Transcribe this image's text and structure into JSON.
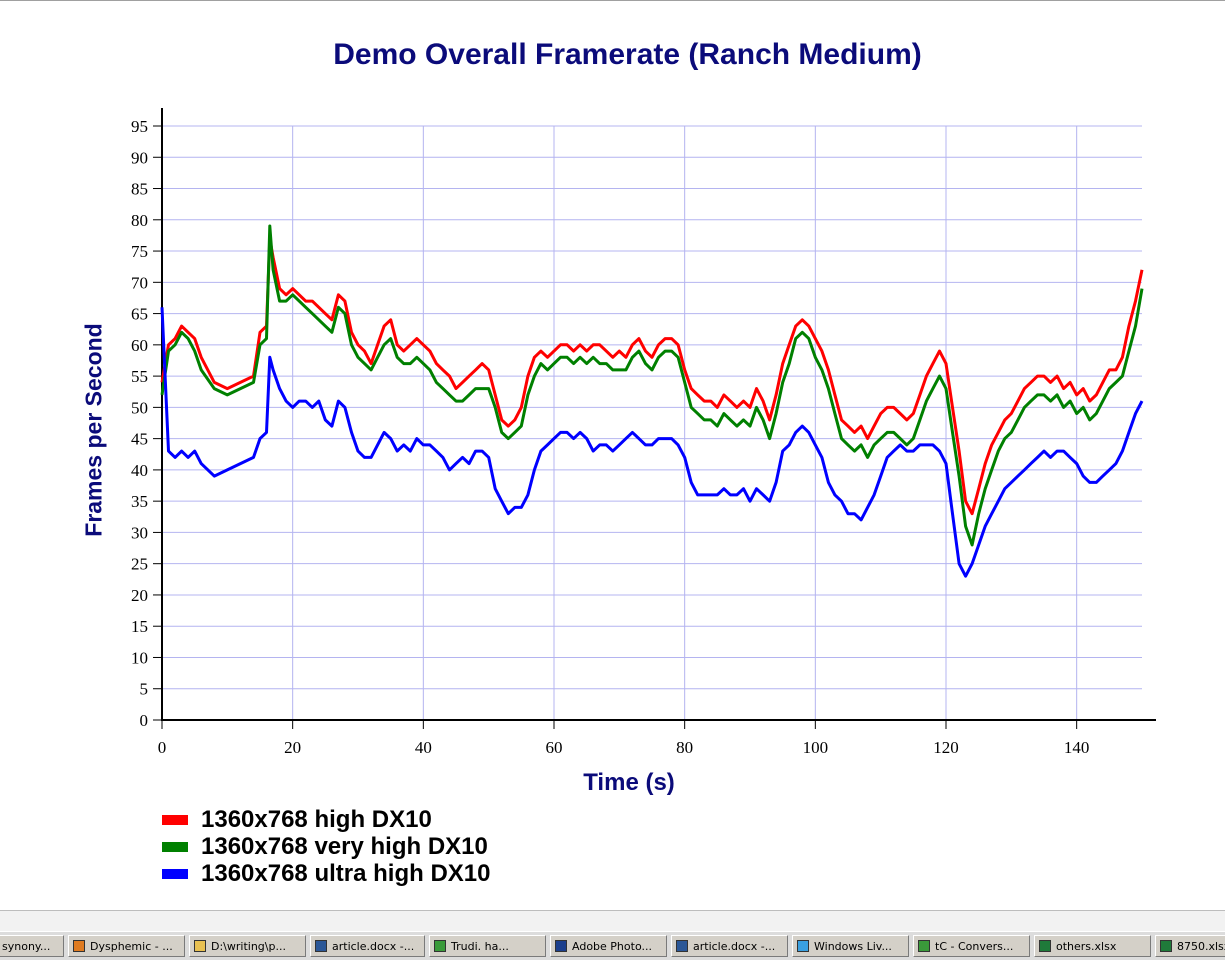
{
  "chart_data": {
    "type": "line",
    "title": "Demo Overall Framerate (Ranch Medium)",
    "xlabel": "Time (s)",
    "ylabel": "Frames per Second",
    "xlim": [
      0,
      150
    ],
    "ylim": [
      0,
      95
    ],
    "xticks": [
      0,
      20,
      40,
      60,
      80,
      100,
      120,
      140
    ],
    "yticks": [
      0,
      5,
      10,
      15,
      20,
      25,
      30,
      35,
      40,
      45,
      50,
      55,
      60,
      65,
      70,
      75,
      80,
      85,
      90,
      95
    ],
    "grid": true,
    "legend_position": "bottom-left",
    "x": [
      0,
      1,
      2,
      3,
      4,
      5,
      6,
      8,
      10,
      12,
      14,
      15,
      16,
      16.5,
      17,
      18,
      19,
      20,
      21,
      22,
      23,
      24,
      25,
      26,
      27,
      28,
      29,
      30,
      31,
      32,
      33,
      34,
      35,
      36,
      37,
      38,
      39,
      40,
      41,
      42,
      43,
      44,
      45,
      46,
      47,
      48,
      49,
      50,
      51,
      52,
      53,
      54,
      55,
      56,
      57,
      58,
      59,
      60,
      61,
      62,
      63,
      64,
      65,
      66,
      67,
      68,
      69,
      70,
      71,
      72,
      73,
      74,
      75,
      76,
      77,
      78,
      79,
      80,
      81,
      82,
      83,
      84,
      85,
      86,
      87,
      88,
      89,
      90,
      91,
      92,
      93,
      94,
      95,
      96,
      97,
      98,
      99,
      100,
      101,
      102,
      103,
      104,
      105,
      106,
      107,
      108,
      109,
      110,
      111,
      112,
      113,
      114,
      115,
      116,
      117,
      118,
      119,
      120,
      121,
      122,
      123,
      124,
      125,
      126,
      127,
      128,
      129,
      130,
      131,
      132,
      133,
      134,
      135,
      136,
      137,
      138,
      139,
      140,
      141,
      142,
      143,
      144,
      145,
      146,
      147,
      148,
      149,
      150
    ],
    "series": [
      {
        "name": "1360x768 high DX10",
        "color": "#ff0000",
        "values": [
          54,
          60,
          61,
          63,
          62,
          61,
          58,
          54,
          53,
          54,
          55,
          62,
          63,
          77,
          74,
          69,
          68,
          69,
          68,
          67,
          67,
          66,
          65,
          64,
          68,
          67,
          62,
          60,
          59,
          57,
          60,
          63,
          64,
          60,
          59,
          60,
          61,
          60,
          59,
          57,
          56,
          55,
          53,
          54,
          55,
          56,
          57,
          56,
          52,
          48,
          47,
          48,
          50,
          55,
          58,
          59,
          58,
          59,
          60,
          60,
          59,
          60,
          59,
          60,
          60,
          59,
          58,
          59,
          58,
          60,
          61,
          59,
          58,
          60,
          61,
          61,
          60,
          56,
          53,
          52,
          51,
          51,
          50,
          52,
          51,
          50,
          51,
          50,
          53,
          51,
          48,
          52,
          57,
          60,
          63,
          64,
          63,
          61,
          59,
          56,
          52,
          48,
          47,
          46,
          47,
          45,
          47,
          49,
          50,
          50,
          49,
          48,
          49,
          52,
          55,
          57,
          59,
          57,
          50,
          43,
          35,
          33,
          37,
          41,
          44,
          46,
          48,
          49,
          51,
          53,
          54,
          55,
          55,
          54,
          55,
          53,
          54,
          52,
          53,
          51,
          52,
          54,
          56,
          56,
          58,
          63,
          67,
          72
        ]
      },
      {
        "name": "1360x768 very high DX10",
        "color": "#008000",
        "values": [
          52,
          59,
          60,
          62,
          61,
          59,
          56,
          53,
          52,
          53,
          54,
          60,
          61,
          79,
          72,
          67,
          67,
          68,
          67,
          66,
          65,
          64,
          63,
          62,
          66,
          65,
          60,
          58,
          57,
          56,
          58,
          60,
          61,
          58,
          57,
          57,
          58,
          57,
          56,
          54,
          53,
          52,
          51,
          51,
          52,
          53,
          53,
          53,
          50,
          46,
          45,
          46,
          47,
          52,
          55,
          57,
          56,
          57,
          58,
          58,
          57,
          58,
          57,
          58,
          57,
          57,
          56,
          56,
          56,
          58,
          59,
          57,
          56,
          58,
          59,
          59,
          58,
          54,
          50,
          49,
          48,
          48,
          47,
          49,
          48,
          47,
          48,
          47,
          50,
          48,
          45,
          49,
          54,
          57,
          61,
          62,
          61,
          58,
          56,
          53,
          49,
          45,
          44,
          43,
          44,
          42,
          44,
          45,
          46,
          46,
          45,
          44,
          45,
          48,
          51,
          53,
          55,
          53,
          46,
          39,
          31,
          28,
          33,
          37,
          40,
          43,
          45,
          46,
          48,
          50,
          51,
          52,
          52,
          51,
          52,
          50,
          51,
          49,
          50,
          48,
          49,
          51,
          53,
          54,
          55,
          59,
          63,
          69
        ]
      },
      {
        "name": "1360x768 ultra high DX10",
        "color": "#0000ff",
        "values": [
          66,
          43,
          42,
          43,
          42,
          43,
          41,
          39,
          40,
          41,
          42,
          45,
          46,
          58,
          56,
          53,
          51,
          50,
          51,
          51,
          50,
          51,
          48,
          47,
          51,
          50,
          46,
          43,
          42,
          42,
          44,
          46,
          45,
          43,
          44,
          43,
          45,
          44,
          44,
          43,
          42,
          40,
          41,
          42,
          41,
          43,
          43,
          42,
          37,
          35,
          33,
          34,
          34,
          36,
          40,
          43,
          44,
          45,
          46,
          46,
          45,
          46,
          45,
          43,
          44,
          44,
          43,
          44,
          45,
          46,
          45,
          44,
          44,
          45,
          45,
          45,
          44,
          42,
          38,
          36,
          36,
          36,
          36,
          37,
          36,
          36,
          37,
          35,
          37,
          36,
          35,
          38,
          43,
          44,
          46,
          47,
          46,
          44,
          42,
          38,
          36,
          35,
          33,
          33,
          32,
          34,
          36,
          39,
          42,
          43,
          44,
          43,
          43,
          44,
          44,
          44,
          43,
          41,
          33,
          25,
          23,
          25,
          28,
          31,
          33,
          35,
          37,
          38,
          39,
          40,
          41,
          42,
          43,
          42,
          43,
          43,
          42,
          41,
          39,
          38,
          38,
          39,
          40,
          41,
          43,
          46,
          49,
          51
        ]
      }
    ]
  },
  "taskbar": {
    "items": [
      {
        "label": "synony...",
        "icon": "browser-icon",
        "icon_color": "#3a7bd5"
      },
      {
        "label": "Dysphemic - ...",
        "icon": "firefox-icon",
        "icon_color": "#e07b20"
      },
      {
        "label": "D:\\writing\\p...",
        "icon": "folder-icon",
        "icon_color": "#e8c050"
      },
      {
        "label": "article.docx -...",
        "icon": "word-icon",
        "icon_color": "#2b5797"
      },
      {
        "label": "Trudi.   ha...",
        "icon": "messenger-icon",
        "icon_color": "#3a9a3a"
      },
      {
        "label": "Adobe Photo...",
        "icon": "photoshop-icon",
        "icon_color": "#1c3f8c"
      },
      {
        "label": "article.docx -...",
        "icon": "word-icon",
        "icon_color": "#2b5797"
      },
      {
        "label": "Windows Liv...",
        "icon": "windows-live-icon",
        "icon_color": "#3aa0e0"
      },
      {
        "label": "tC - Convers...",
        "icon": "messenger-icon",
        "icon_color": "#3a9a3a"
      },
      {
        "label": "others.xlsx",
        "icon": "excel-icon",
        "icon_color": "#1f7a3a"
      },
      {
        "label": "8750.xlsx",
        "icon": "excel-icon",
        "icon_color": "#1f7a3a"
      }
    ]
  }
}
